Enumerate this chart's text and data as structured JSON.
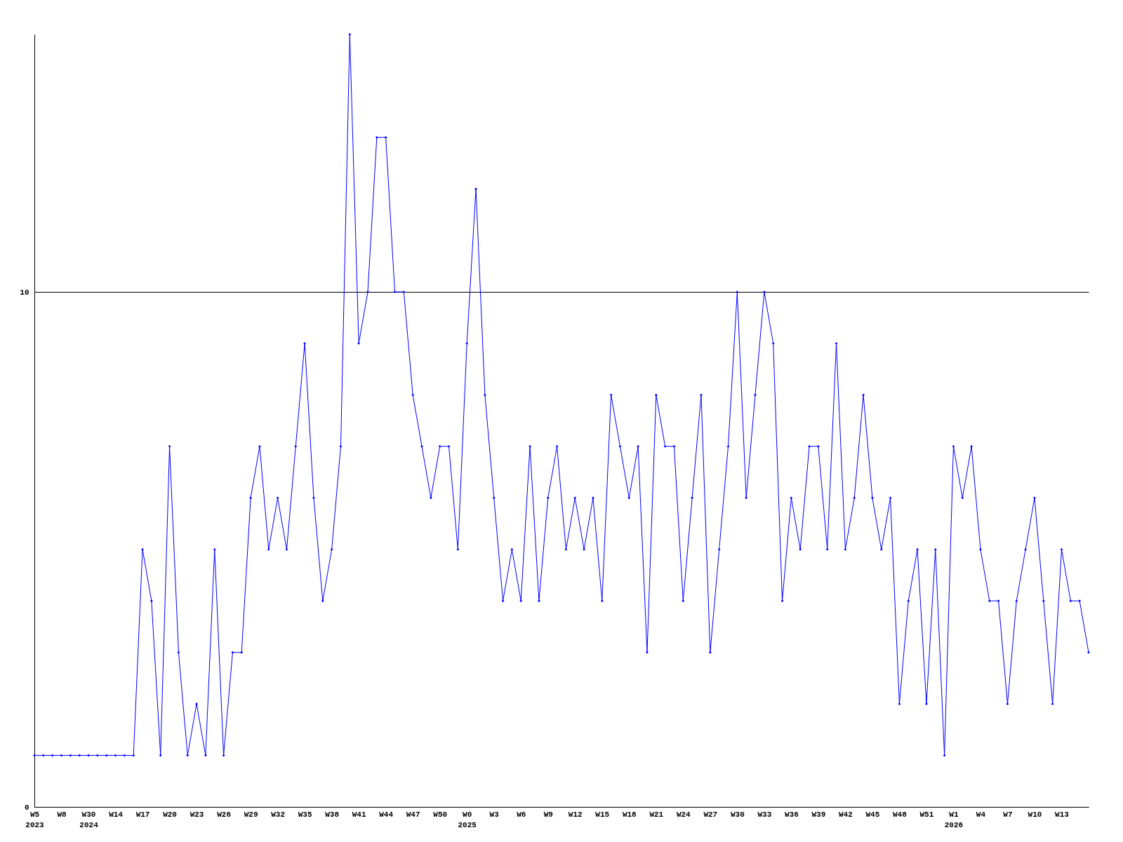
{
  "chart_data": {
    "type": "line",
    "categories": [
      "W5\n2023",
      null,
      null,
      "W8",
      null,
      null,
      "W30\n2024",
      null,
      null,
      "W14",
      null,
      null,
      "W17",
      null,
      null,
      "W20",
      null,
      null,
      "W23",
      null,
      null,
      "W26",
      null,
      null,
      "W29",
      null,
      null,
      "W32",
      null,
      null,
      "W35",
      null,
      null,
      "W38",
      null,
      null,
      "W41",
      null,
      null,
      "W44",
      null,
      null,
      "W47",
      null,
      null,
      "W50",
      null,
      null,
      "W0\n2025",
      null,
      null,
      "W3",
      null,
      null,
      "W6",
      null,
      null,
      "W9",
      null,
      null,
      "W12",
      null,
      null,
      "W15",
      null,
      null,
      "W18",
      null,
      null,
      "W21",
      null,
      null,
      "W24",
      null,
      null,
      "W27",
      null,
      null,
      "W30",
      null,
      null,
      "W33",
      null,
      null,
      "W36",
      null,
      null,
      "W39",
      null,
      null,
      "W42",
      null,
      null,
      "W45",
      null,
      null,
      "W48",
      null,
      null,
      "W51",
      null,
      null,
      "W1\n2026",
      null,
      null,
      "W4",
      null,
      null,
      "W7",
      null,
      null,
      "W10",
      null,
      null,
      "W13",
      null,
      null,
      null
    ],
    "series": [
      {
        "color": "#0000ff",
        "values": [
          1,
          1,
          1,
          1,
          1,
          1,
          1,
          1,
          1,
          1,
          1,
          1,
          5,
          4,
          1,
          7,
          3,
          1,
          2,
          1,
          5,
          1,
          3,
          3,
          6,
          7,
          5,
          6,
          5,
          7,
          9,
          6,
          4,
          5,
          7,
          15,
          9,
          10,
          13,
          13,
          10,
          10,
          8,
          7,
          6,
          7,
          7,
          5,
          9,
          12,
          8,
          6,
          4,
          5,
          4,
          7,
          4,
          6,
          7,
          5,
          6,
          5,
          6,
          4,
          8,
          7,
          6,
          7,
          3,
          8,
          7,
          7,
          4,
          6,
          8,
          3,
          5,
          7,
          10,
          6,
          8,
          10,
          9,
          4,
          6,
          5,
          7,
          7,
          5,
          9,
          5,
          6,
          8,
          6,
          5,
          6,
          2,
          4,
          5,
          2,
          5,
          1,
          7,
          6,
          7,
          5,
          4,
          4,
          2,
          4,
          5,
          6,
          4,
          2,
          5,
          4,
          4,
          3
        ]
      }
    ],
    "ylim": [
      0,
      15
    ],
    "yticks": [
      0,
      10
    ],
    "grid": "y",
    "marker": "diamond",
    "line_style": "solid"
  }
}
